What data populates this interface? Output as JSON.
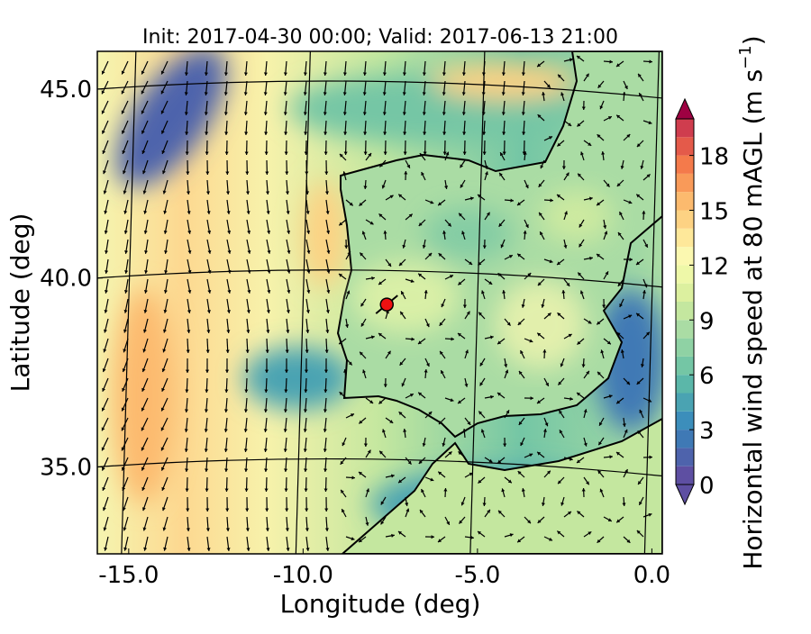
{
  "chart_data": {
    "type": "map",
    "title": "Init: 2017-04-30 00:00; Valid: 2017-06-13 21:00",
    "x_label": "Longitude (deg)",
    "y_label": "Latitude (deg)",
    "xlim": [
      -15.9,
      0.3
    ],
    "ylim": [
      32.7,
      46.0
    ],
    "xticks": [
      {
        "value": -15,
        "label": "-15.0"
      },
      {
        "value": -10,
        "label": "-10.0"
      },
      {
        "value": -5,
        "label": "-5.0"
      },
      {
        "value": 0,
        "label": "0.0"
      }
    ],
    "yticks": [
      {
        "value": 35,
        "label": "35.0"
      },
      {
        "value": 40,
        "label": "40.0"
      },
      {
        "value": 45,
        "label": "45.0"
      }
    ],
    "marker": {
      "x": -7.6,
      "y": 39.3,
      "color": "#ee1111"
    },
    "colorbar": {
      "label_main": "Horizontal wind speed at 80 mAGL (m s",
      "label_sup": "−1",
      "label_end": ")",
      "lim": [
        0,
        20
      ],
      "ticks": [
        0,
        3,
        6,
        9,
        12,
        15,
        18
      ],
      "levels": [
        0,
        1,
        2,
        3,
        4,
        5,
        6,
        7,
        8,
        9,
        10,
        11,
        12,
        13,
        14,
        15,
        16,
        17,
        18,
        19,
        20
      ],
      "colors": [
        "#5e4fa2",
        "#4e63ac",
        "#3f79b5",
        "#3c8ebb",
        "#4aa3b2",
        "#5bb7a9",
        "#74c6a5",
        "#8fd2a4",
        "#aadca4",
        "#c4e79f",
        "#dcf09f",
        "#eef8a8",
        "#fbf8b0",
        "#fee89a",
        "#fdd283",
        "#fcba6e",
        "#f99a59",
        "#f47a4b",
        "#e45a4a",
        "#cf3d4e"
      ],
      "under_color": "#5e4fa2",
      "over_color": "#9e0142"
    }
  }
}
